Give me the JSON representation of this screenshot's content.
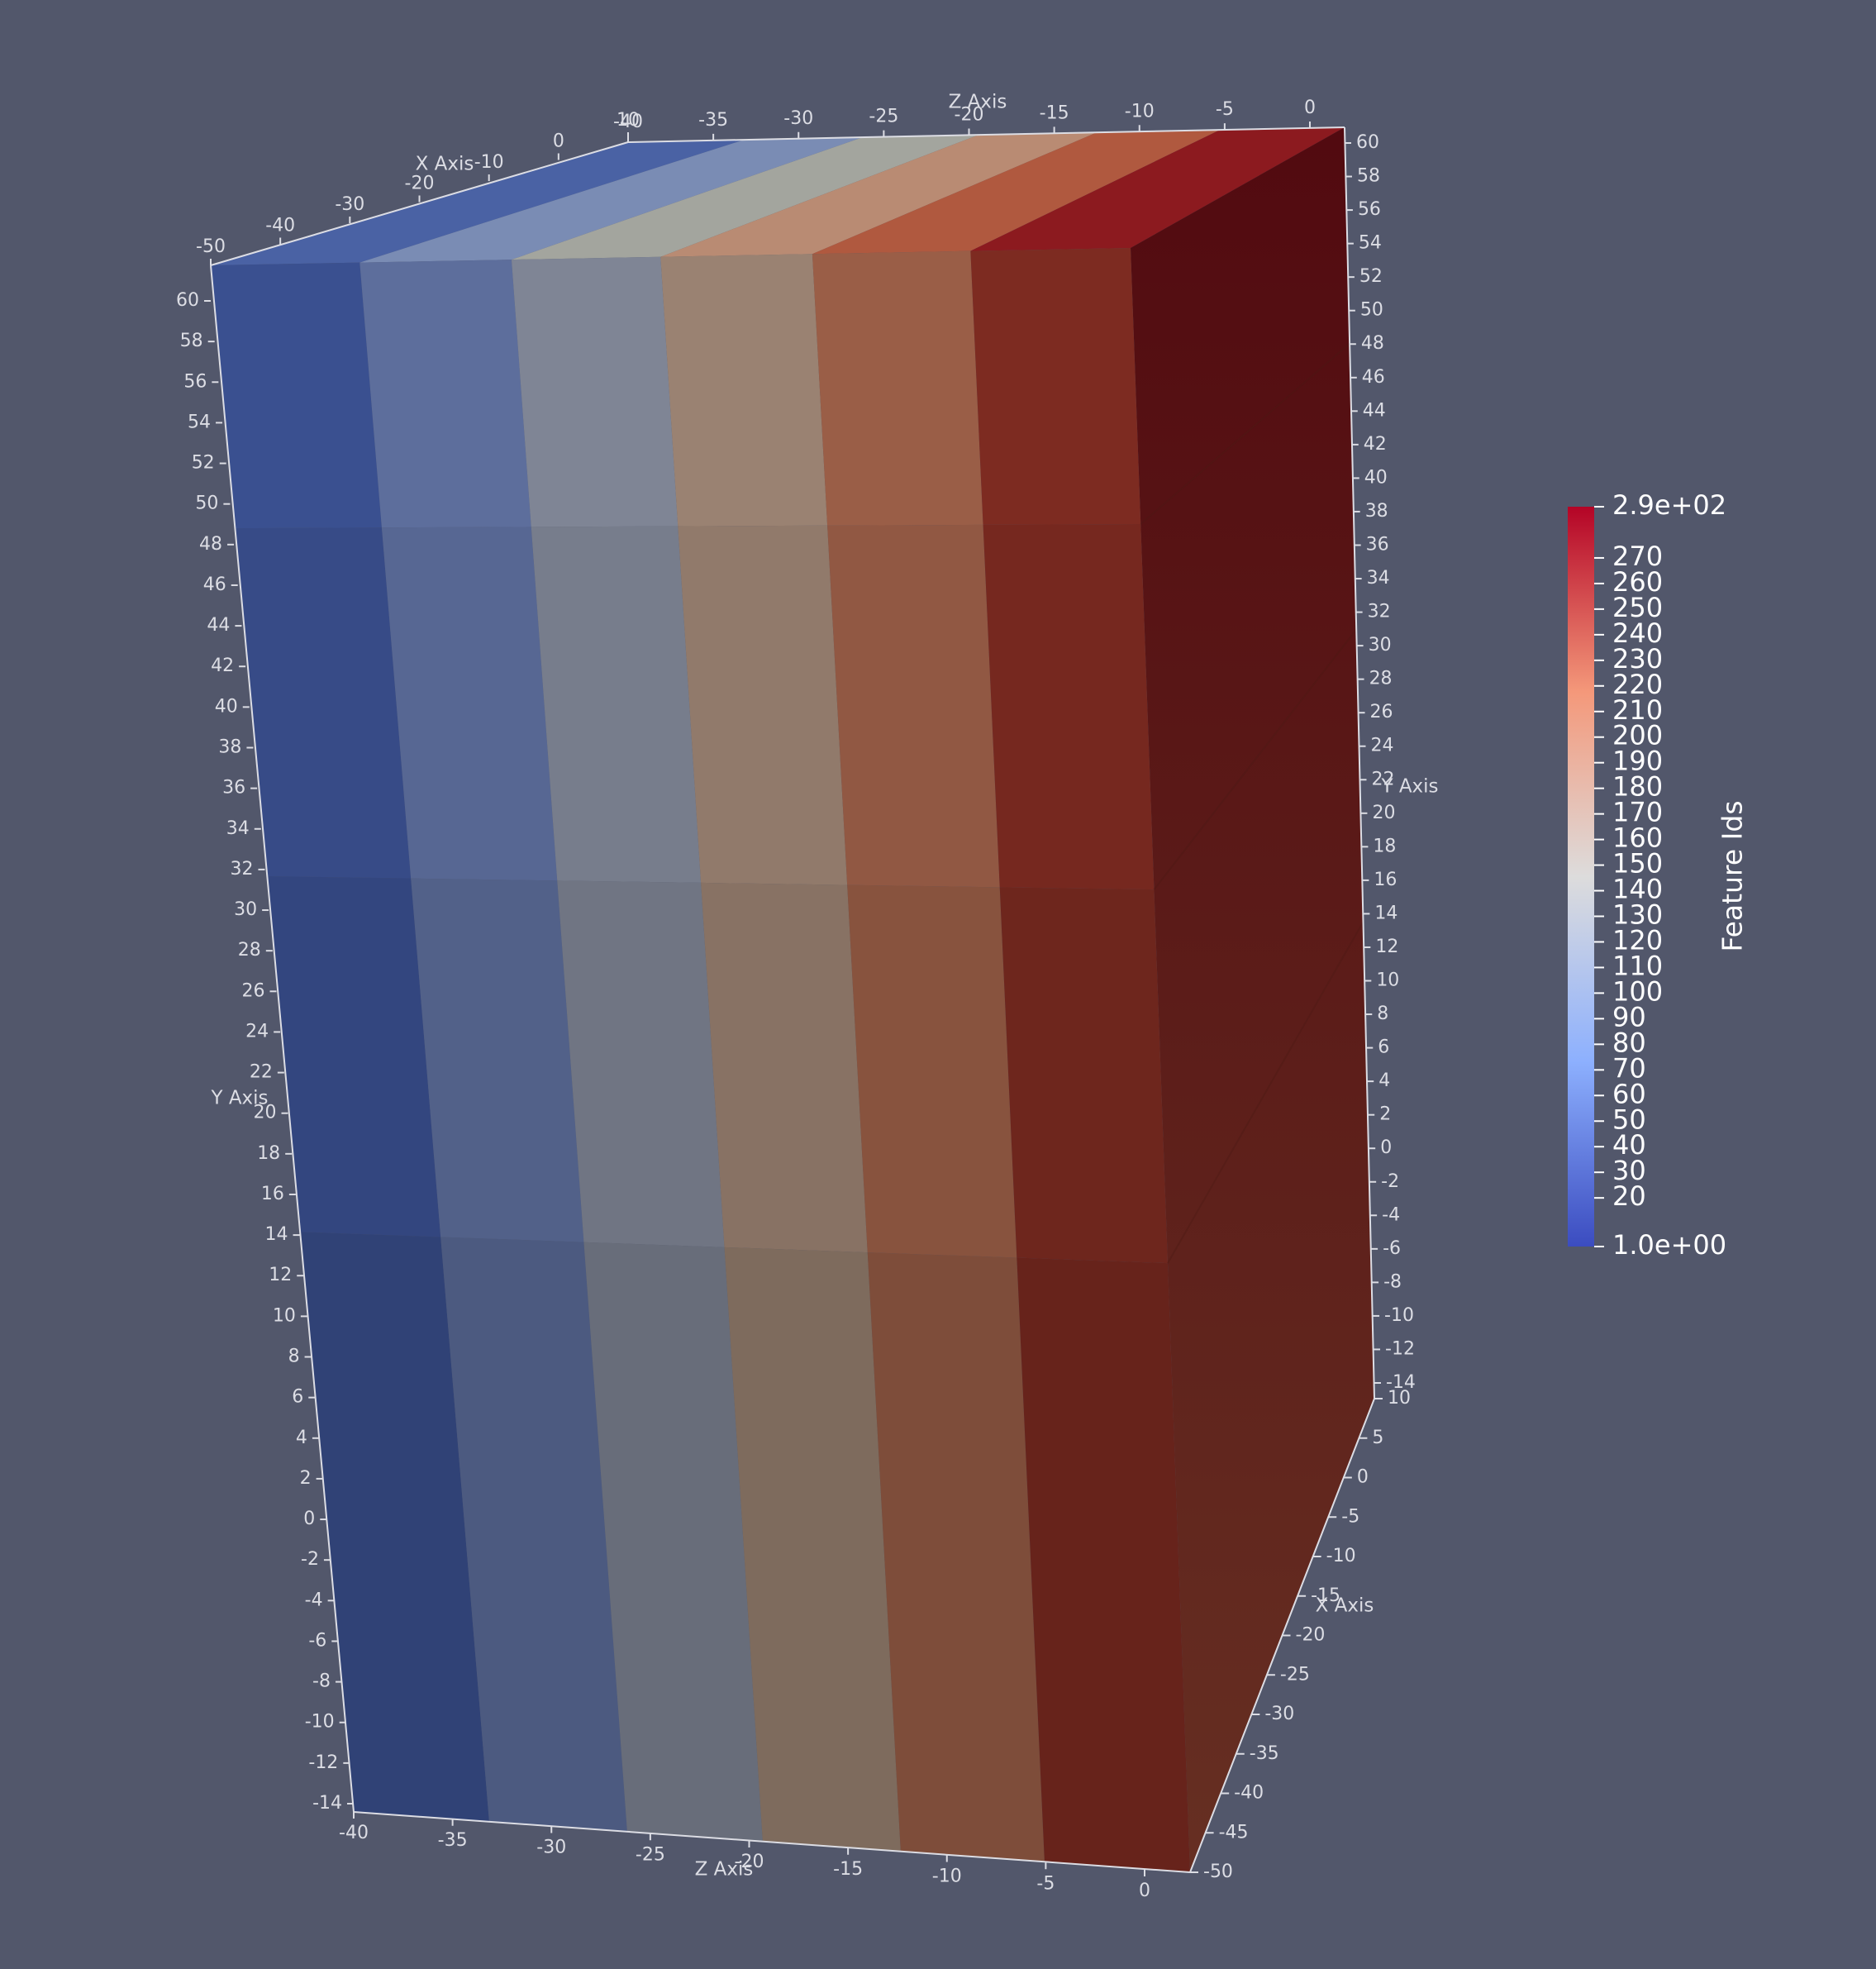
{
  "scene": {
    "background": "#52576b",
    "axis_color": "#dcdde4",
    "band_colors_front": [
      "#3a5090",
      "#5d6e9c",
      "#7f8595",
      "#9a8272",
      "#9a5e47",
      "#7d2b21"
    ],
    "side_color": "#5e1f1a"
  },
  "axes": {
    "y_left_title": "Y Axis",
    "y_right_title": "Y Axis",
    "z_top_title": "Z Axis",
    "z_bottom_title": "Z Axis",
    "x_top_title": "X Axis",
    "x_right_title": "X Axis",
    "y_left_ticks": [
      "60",
      "58",
      "56",
      "54",
      "52",
      "50",
      "48",
      "46",
      "44",
      "42",
      "40",
      "38",
      "36",
      "34",
      "32",
      "30",
      "28",
      "26",
      "24",
      "22",
      "20",
      "18",
      "16",
      "14",
      "12",
      "10",
      "8",
      "6",
      "4",
      "2",
      "0",
      "-2",
      "-4",
      "-6",
      "-8",
      "-10",
      "-12",
      "-14"
    ],
    "y_right_ticks": [
      "60",
      "58",
      "56",
      "54",
      "52",
      "50",
      "48",
      "46",
      "44",
      "42",
      "40",
      "38",
      "36",
      "34",
      "32",
      "30",
      "28",
      "26",
      "24",
      "22",
      "20",
      "18",
      "16",
      "14",
      "12",
      "10",
      "8",
      "6",
      "4",
      "2",
      "0",
      "-2",
      "-4",
      "-6",
      "-8",
      "-10",
      "-12",
      "-14"
    ],
    "z_top_ticks": [
      "-40",
      "-35",
      "-30",
      "-25",
      "-20",
      "-15",
      "-10",
      "-5",
      "0"
    ],
    "z_bottom_ticks": [
      "-40",
      "-35",
      "-30",
      "-25",
      "-20",
      "-15",
      "-10",
      "-5",
      "0"
    ],
    "x_top_ticks": [
      "-50",
      "-40",
      "-30",
      "-20",
      "-10",
      "0",
      "10"
    ],
    "x_right_ticks": [
      "10",
      "5",
      "0",
      "-5",
      "-10",
      "-15",
      "-20",
      "-25",
      "-30",
      "-35",
      "-40",
      "-45",
      "-50"
    ]
  },
  "colorbar": {
    "title": "Feature Ids",
    "max_label": "2.9e+02",
    "min_label": "1.0e+00",
    "ticks": [
      "270",
      "260",
      "250",
      "240",
      "230",
      "220",
      "210",
      "200",
      "190",
      "180",
      "170",
      "160",
      "150",
      "140",
      "130",
      "120",
      "110",
      "100",
      "90",
      "80",
      "70",
      "60",
      "50",
      "40",
      "30",
      "20"
    ],
    "range": [
      1,
      290
    ],
    "colormap": "Cool to Warm"
  }
}
